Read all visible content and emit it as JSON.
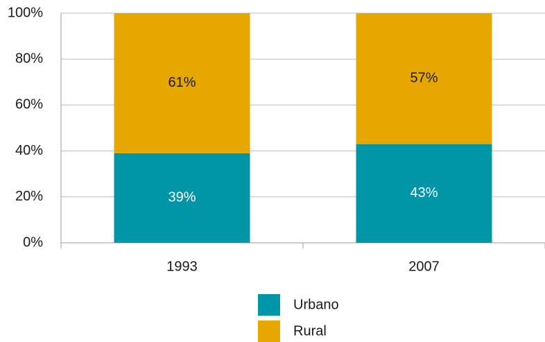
{
  "chart_data": {
    "type": "stacked_bar",
    "categories": [
      "1993",
      "2007"
    ],
    "series": [
      {
        "name": "Urbano",
        "color": "#0096a8",
        "values": [
          39,
          43
        ],
        "value_labels": [
          "39%",
          "43%"
        ]
      },
      {
        "name": "Rural",
        "color": "#e6a800",
        "values": [
          61,
          57
        ],
        "value_labels": [
          "61%",
          "57%"
        ]
      }
    ],
    "ylim": [
      0,
      100
    ],
    "yticks": [
      {
        "value": 0,
        "label": "0%"
      },
      {
        "value": 20,
        "label": "20%"
      },
      {
        "value": 40,
        "label": "40%"
      },
      {
        "value": 60,
        "label": "60%"
      },
      {
        "value": 80,
        "label": "80%"
      },
      {
        "value": 100,
        "label": "100%"
      }
    ],
    "grid": true,
    "legend": "bottom"
  }
}
